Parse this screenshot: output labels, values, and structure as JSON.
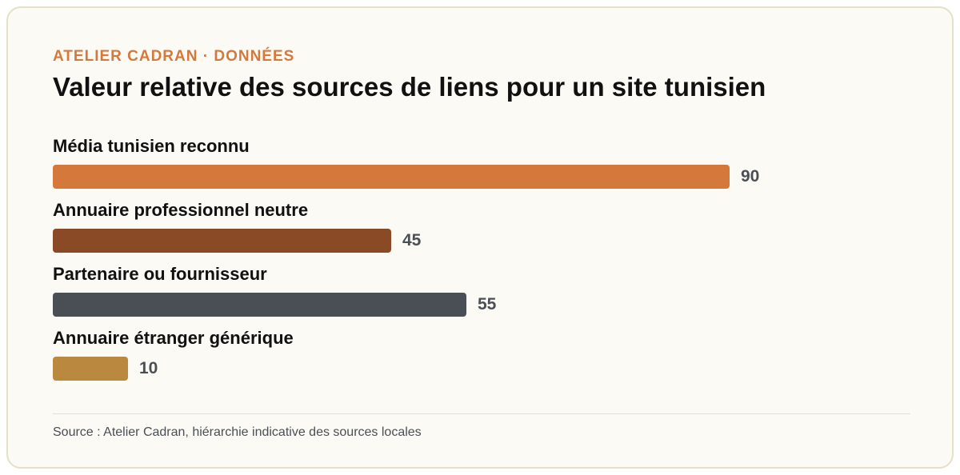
{
  "header": {
    "eyebrow": "ATELIER CADRAN · DONNÉES",
    "title": "Valeur relative des sources de liens pour un site tunisien"
  },
  "footer": {
    "source": "Source : Atelier Cadran, hiérarchie indicative des sources locales"
  },
  "chart_data": {
    "type": "bar",
    "orientation": "horizontal",
    "title": "Valeur relative des sources de liens pour un site tunisien",
    "categories": [
      "Média tunisien reconnu",
      "Annuaire professionnel neutre",
      "Partenaire ou fournisseur",
      "Annuaire étranger générique"
    ],
    "values": [
      90,
      45,
      55,
      10
    ],
    "colors": [
      "#d4783c",
      "#8b4a26",
      "#4a4f55",
      "#bb8840"
    ],
    "xlim": [
      0,
      100
    ],
    "grid": false,
    "data_labels": true
  }
}
